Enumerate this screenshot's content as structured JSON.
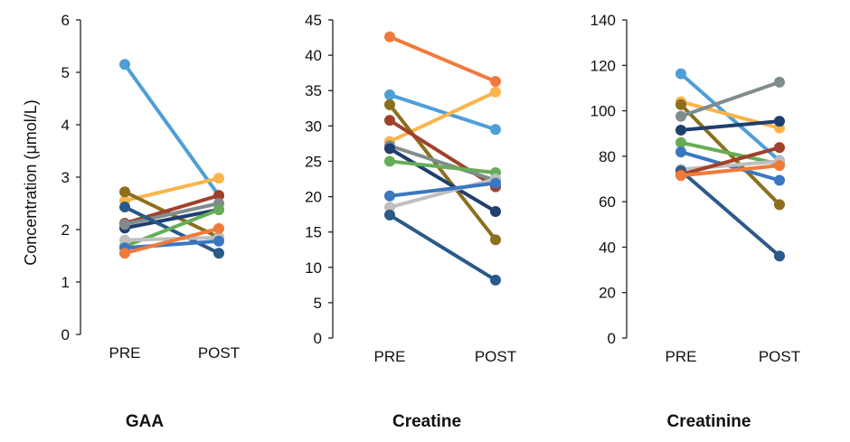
{
  "figure": {
    "ylabel": "Concentration (μmol/L)",
    "categories": [
      "PRE",
      "POST"
    ]
  },
  "chart_data": [
    {
      "type": "line",
      "title": "GAA",
      "categories": [
        "PRE",
        "POST"
      ],
      "ylim": [
        0,
        6
      ],
      "yticks": [
        0,
        1,
        2,
        3,
        4,
        5,
        6
      ],
      "grid": false,
      "series": [
        {
          "color": "#4e9fd6",
          "values": [
            5.15,
            2.65
          ]
        },
        {
          "color": "#fbb44b",
          "values": [
            2.55,
            2.98
          ]
        },
        {
          "color": "#8b6f1e",
          "values": [
            2.72,
            1.85
          ]
        },
        {
          "color": "#1f3f6f",
          "values": [
            2.03,
            2.38
          ]
        },
        {
          "color": "#a0412a",
          "values": [
            2.12,
            2.65
          ]
        },
        {
          "color": "#7f8c8d",
          "values": [
            2.1,
            2.5
          ]
        },
        {
          "color": "#2b5a8a",
          "values": [
            2.43,
            1.55
          ]
        },
        {
          "color": "#66ad57",
          "values": [
            1.68,
            2.38
          ]
        },
        {
          "color": "#bfbfbf",
          "values": [
            1.8,
            1.85
          ]
        },
        {
          "color": "#3a77c0",
          "values": [
            1.65,
            1.78
          ]
        },
        {
          "color": "#f07a3c",
          "values": [
            1.55,
            2.02
          ]
        }
      ]
    },
    {
      "type": "line",
      "title": "Creatine",
      "categories": [
        "PRE",
        "POST"
      ],
      "ylim": [
        0,
        45
      ],
      "yticks": [
        0,
        5,
        10,
        15,
        20,
        25,
        30,
        35,
        40,
        45
      ],
      "grid": false,
      "series": [
        {
          "color": "#f07a3c",
          "values": [
            42.6,
            36.3
          ]
        },
        {
          "color": "#4e9fd6",
          "values": [
            34.4,
            29.5
          ]
        },
        {
          "color": "#fbb44b",
          "values": [
            27.8,
            34.8
          ]
        },
        {
          "color": "#8b6f1e",
          "values": [
            33.0,
            13.9
          ]
        },
        {
          "color": "#a0412a",
          "values": [
            30.8,
            21.4
          ]
        },
        {
          "color": "#7f8c8d",
          "values": [
            27.2,
            22.3
          ]
        },
        {
          "color": "#1f3f6f",
          "values": [
            26.8,
            17.9
          ]
        },
        {
          "color": "#66ad57",
          "values": [
            25.0,
            23.4
          ]
        },
        {
          "color": "#bfbfbf",
          "values": [
            18.5,
            22.5
          ]
        },
        {
          "color": "#3a77c0",
          "values": [
            20.1,
            21.9
          ]
        },
        {
          "color": "#2b5a8a",
          "values": [
            17.4,
            8.2
          ]
        }
      ]
    },
    {
      "type": "line",
      "title": "Creatinine",
      "categories": [
        "PRE",
        "POST"
      ],
      "ylim": [
        0,
        140
      ],
      "yticks": [
        0,
        20,
        40,
        60,
        80,
        100,
        120,
        140
      ],
      "grid": false,
      "series": [
        {
          "color": "#4e9fd6",
          "values": [
            116.3,
            78.0
          ]
        },
        {
          "color": "#fbb44b",
          "values": [
            104.0,
            92.4
          ]
        },
        {
          "color": "#8b6f1e",
          "values": [
            102.7,
            58.7
          ]
        },
        {
          "color": "#7f8c8d",
          "values": [
            97.6,
            112.6
          ]
        },
        {
          "color": "#1f3f6f",
          "values": [
            91.5,
            95.4
          ]
        },
        {
          "color": "#66ad57",
          "values": [
            86.0,
            76.6
          ]
        },
        {
          "color": "#3a77c0",
          "values": [
            81.9,
            69.4
          ]
        },
        {
          "color": "#bfbfbf",
          "values": [
            74.2,
            77.8
          ]
        },
        {
          "color": "#2b5a8a",
          "values": [
            73.6,
            36.1
          ]
        },
        {
          "color": "#a0412a",
          "values": [
            71.9,
            83.8
          ]
        },
        {
          "color": "#f07a3c",
          "values": [
            71.5,
            75.9
          ]
        }
      ]
    }
  ]
}
